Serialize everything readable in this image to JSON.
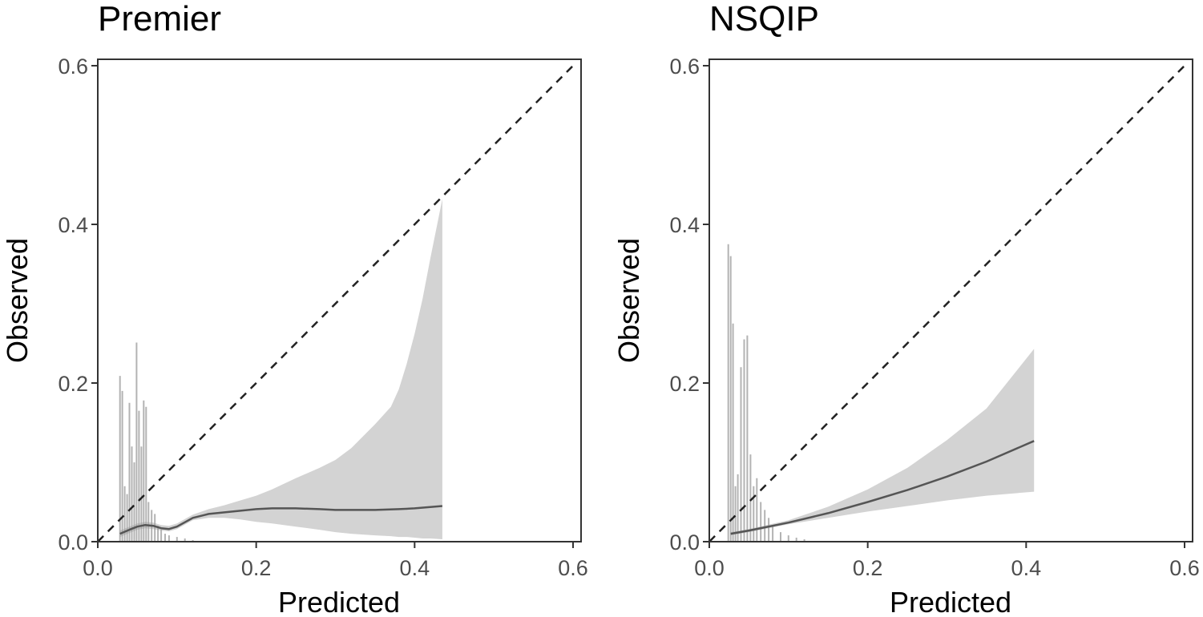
{
  "chart_data": [
    {
      "type": "calibration",
      "title": "Premier",
      "xlabel": "Predicted",
      "ylabel": "Observed",
      "xlim": [
        0,
        0.6
      ],
      "ylim": [
        0,
        0.6
      ],
      "x_ticks": [
        0.0,
        0.2,
        0.4,
        0.6
      ],
      "y_ticks": [
        0.0,
        0.2,
        0.4,
        0.6
      ],
      "x_tick_labels": [
        "0.0",
        "0.2",
        "0.4",
        "0.6"
      ],
      "y_tick_labels": [
        "0.0",
        "0.2",
        "0.4",
        "0.6"
      ],
      "grid": false,
      "reference_line": {
        "from": [
          0,
          0
        ],
        "to": [
          0.6,
          0.6
        ],
        "style": "dashed"
      },
      "calibration_curve": {
        "x": [
          0.028,
          0.04,
          0.05,
          0.06,
          0.07,
          0.08,
          0.09,
          0.1,
          0.12,
          0.14,
          0.16,
          0.18,
          0.2,
          0.22,
          0.25,
          0.28,
          0.3,
          0.32,
          0.35,
          0.38,
          0.4,
          0.435
        ],
        "y": [
          0.01,
          0.015,
          0.019,
          0.021,
          0.02,
          0.017,
          0.016,
          0.019,
          0.03,
          0.035,
          0.037,
          0.039,
          0.041,
          0.042,
          0.042,
          0.041,
          0.04,
          0.04,
          0.04,
          0.041,
          0.042,
          0.045
        ]
      },
      "confidence_band": {
        "x": [
          0.028,
          0.04,
          0.05,
          0.06,
          0.07,
          0.08,
          0.09,
          0.1,
          0.12,
          0.14,
          0.16,
          0.18,
          0.2,
          0.22,
          0.25,
          0.28,
          0.3,
          0.32,
          0.35,
          0.37,
          0.38,
          0.39,
          0.4,
          0.41,
          0.42,
          0.435
        ],
        "lower": [
          0.006,
          0.011,
          0.015,
          0.017,
          0.016,
          0.014,
          0.013,
          0.016,
          0.027,
          0.03,
          0.03,
          0.028,
          0.025,
          0.023,
          0.019,
          0.015,
          0.012,
          0.01,
          0.008,
          0.007,
          0.006,
          0.006,
          0.005,
          0.004,
          0.004,
          0.003
        ],
        "upper": [
          0.014,
          0.019,
          0.023,
          0.025,
          0.024,
          0.021,
          0.02,
          0.023,
          0.034,
          0.041,
          0.046,
          0.052,
          0.058,
          0.066,
          0.08,
          0.093,
          0.103,
          0.118,
          0.148,
          0.17,
          0.192,
          0.224,
          0.262,
          0.306,
          0.358,
          0.432
        ]
      },
      "histogram": {
        "x": [
          0.028,
          0.031,
          0.034,
          0.037,
          0.04,
          0.043,
          0.046,
          0.049,
          0.052,
          0.055,
          0.058,
          0.061,
          0.064,
          0.068,
          0.072,
          0.076,
          0.08,
          0.085,
          0.09,
          0.1,
          0.11,
          0.12
        ],
        "heights": [
          0.209,
          0.19,
          0.07,
          0.06,
          0.175,
          0.12,
          0.1,
          0.251,
          0.165,
          0.12,
          0.178,
          0.17,
          0.05,
          0.04,
          0.035,
          0.02,
          0.015,
          0.01,
          0.008,
          0.006,
          0.004,
          0.002
        ]
      }
    },
    {
      "type": "calibration",
      "title": "NSQIP",
      "xlabel": "Predicted",
      "ylabel": "Observed",
      "xlim": [
        0,
        0.6
      ],
      "ylim": [
        0,
        0.6
      ],
      "x_ticks": [
        0.0,
        0.2,
        0.4,
        0.6
      ],
      "y_ticks": [
        0.0,
        0.2,
        0.4,
        0.6
      ],
      "x_tick_labels": [
        "0.0",
        "0.2",
        "0.4",
        "0.6"
      ],
      "y_tick_labels": [
        "0.0",
        "0.2",
        "0.4",
        "0.6"
      ],
      "grid": false,
      "reference_line": {
        "from": [
          0,
          0
        ],
        "to": [
          0.6,
          0.6
        ],
        "style": "dashed"
      },
      "calibration_curve": {
        "x": [
          0.027,
          0.05,
          0.1,
          0.15,
          0.2,
          0.25,
          0.3,
          0.35,
          0.41
        ],
        "y": [
          0.01,
          0.014,
          0.024,
          0.036,
          0.05,
          0.065,
          0.082,
          0.101,
          0.127
        ]
      },
      "confidence_band": {
        "x": [
          0.027,
          0.05,
          0.1,
          0.15,
          0.2,
          0.25,
          0.3,
          0.35,
          0.41
        ],
        "lower": [
          0.008,
          0.012,
          0.022,
          0.03,
          0.038,
          0.045,
          0.052,
          0.058,
          0.063
        ],
        "upper": [
          0.012,
          0.016,
          0.027,
          0.044,
          0.066,
          0.093,
          0.128,
          0.168,
          0.243
        ]
      },
      "histogram": {
        "x": [
          0.024,
          0.027,
          0.03,
          0.033,
          0.036,
          0.04,
          0.044,
          0.048,
          0.052,
          0.056,
          0.06,
          0.065,
          0.07,
          0.075,
          0.08,
          0.09,
          0.1,
          0.11,
          0.12
        ],
        "heights": [
          0.375,
          0.36,
          0.275,
          0.07,
          0.085,
          0.22,
          0.255,
          0.26,
          0.11,
          0.07,
          0.08,
          0.05,
          0.04,
          0.03,
          0.02,
          0.012,
          0.008,
          0.005,
          0.003
        ]
      }
    }
  ]
}
